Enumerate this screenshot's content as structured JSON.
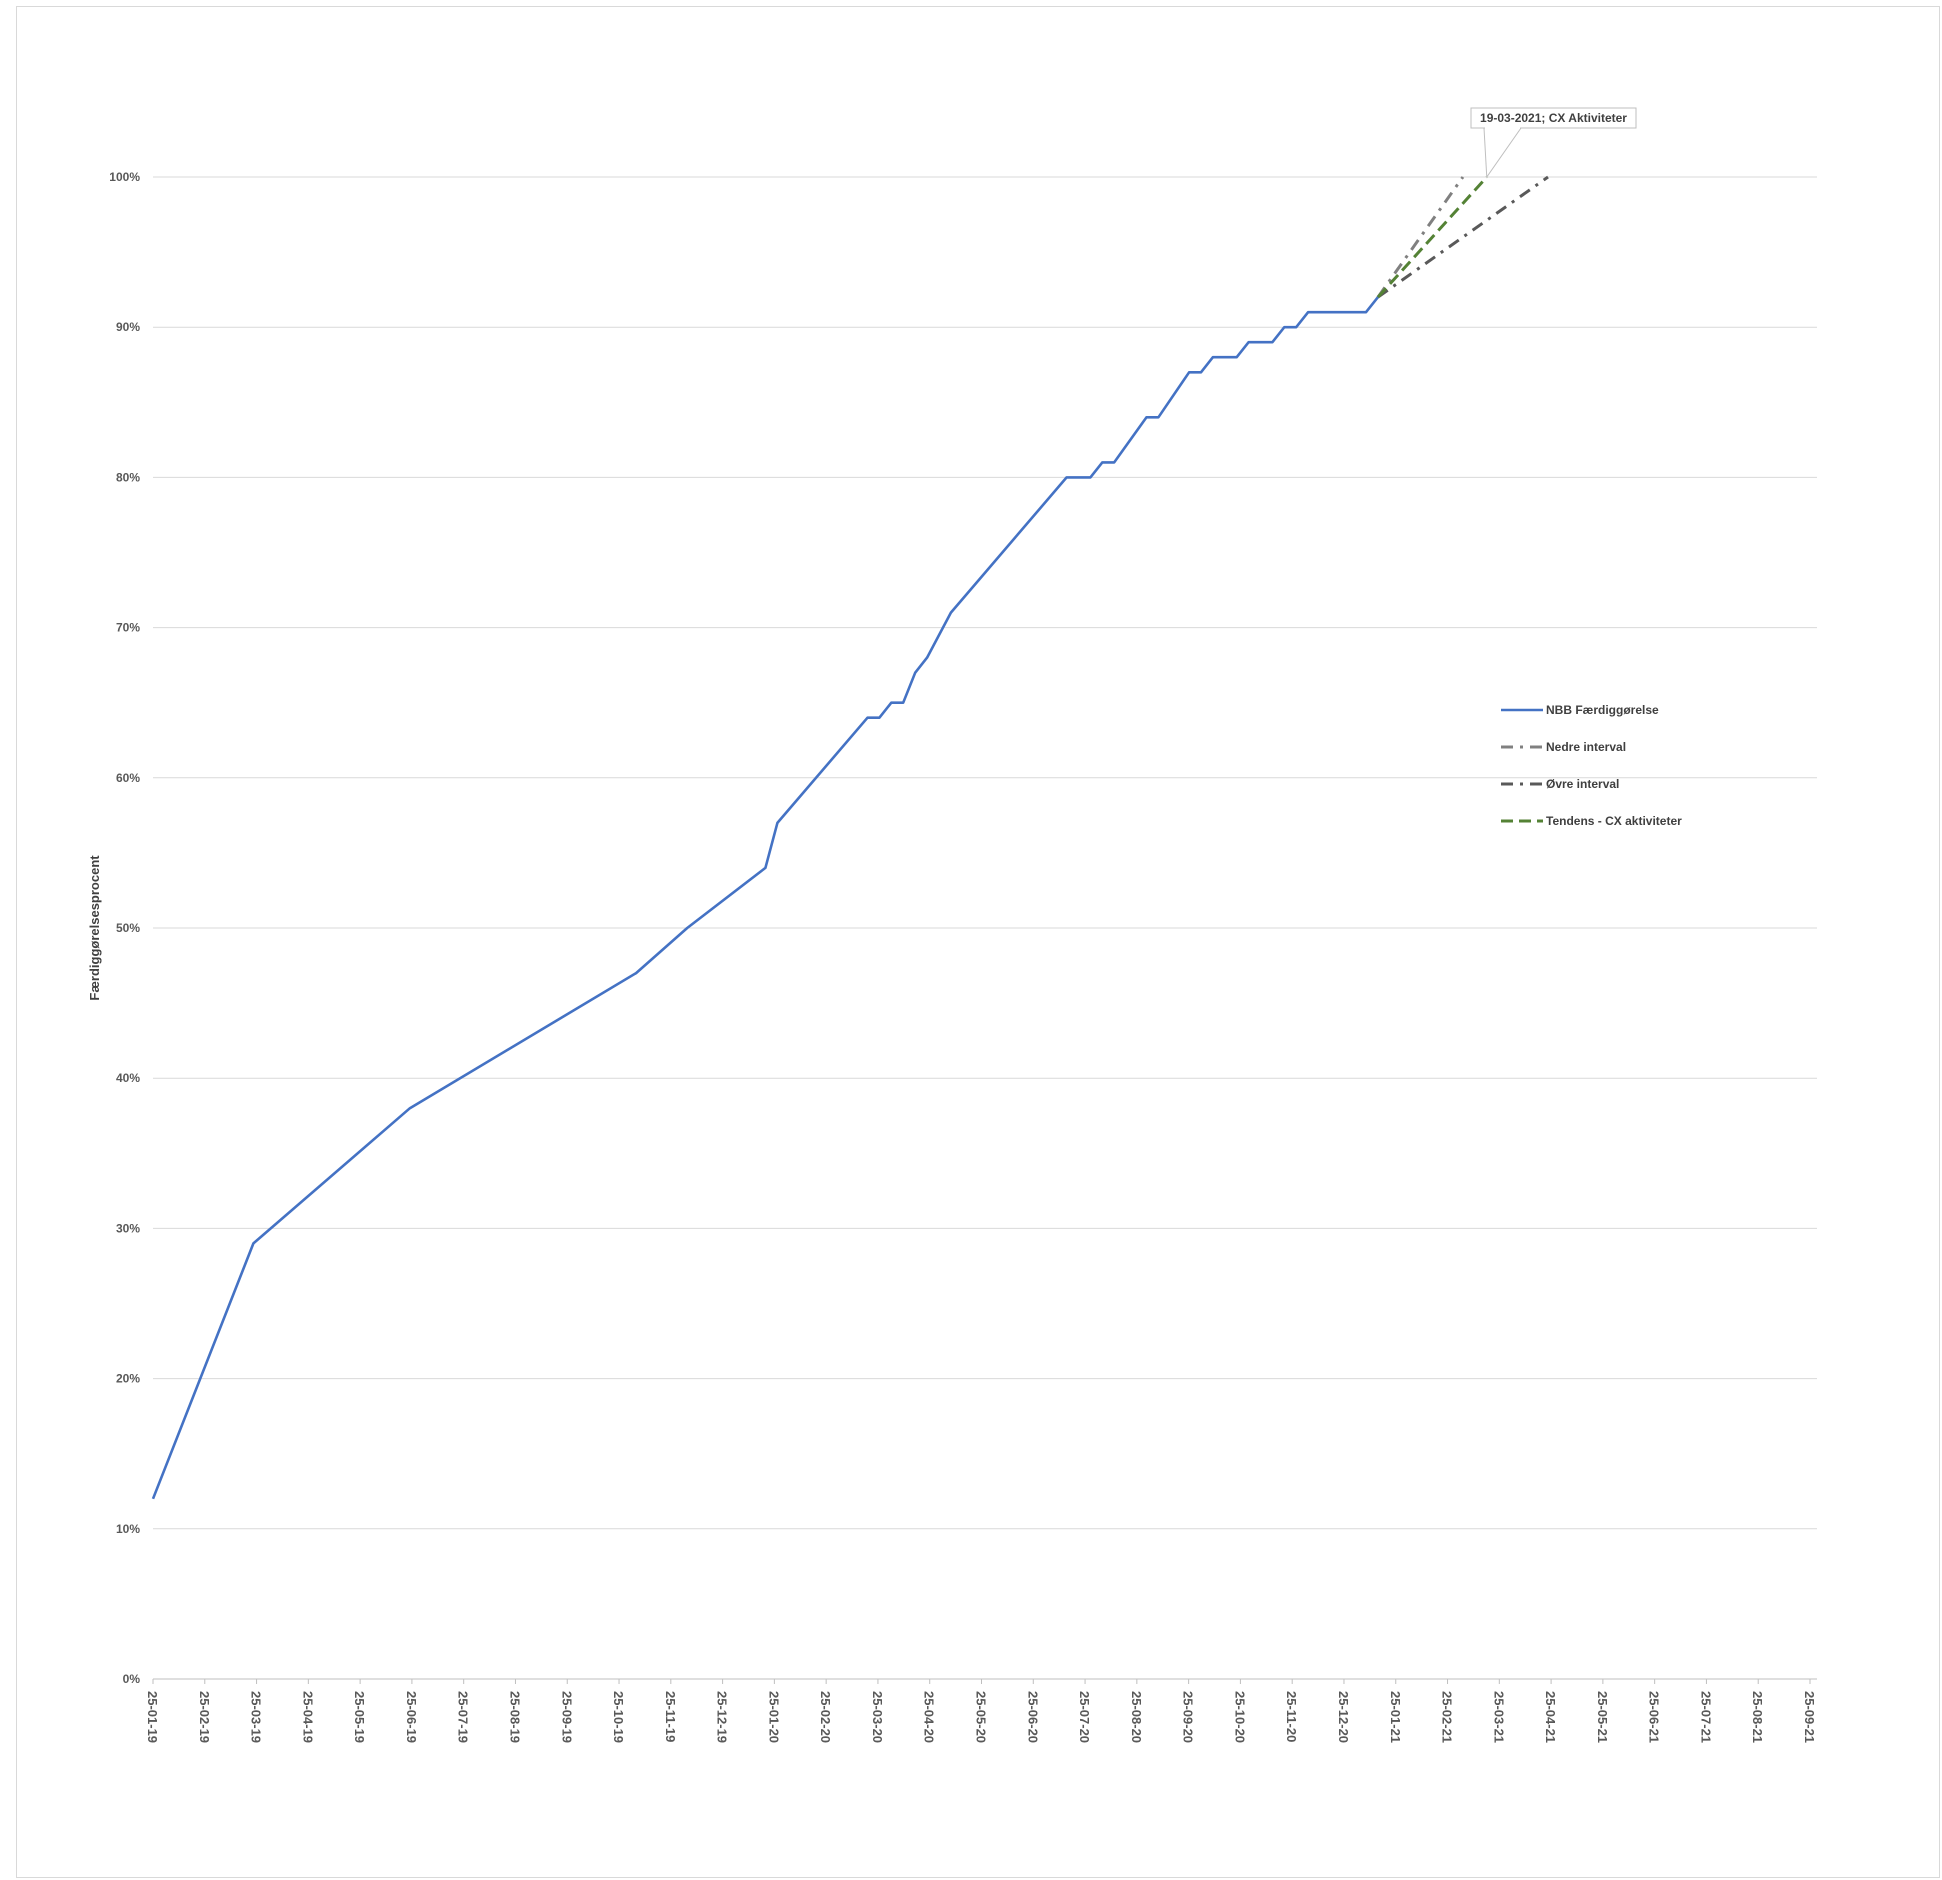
{
  "chart_data": {
    "type": "line",
    "ylabel": "Færdiggørelsesprocent",
    "xlabel": "",
    "title": "",
    "ylim": [
      0,
      100
    ],
    "y_ticks": [
      "0%",
      "10%",
      "20%",
      "30%",
      "40%",
      "50%",
      "60%",
      "70%",
      "80%",
      "90%",
      "100%"
    ],
    "x_ticks": [
      "25-01-19",
      "25-02-19",
      "25-03-19",
      "25-04-19",
      "25-05-19",
      "25-06-19",
      "25-07-19",
      "25-08-19",
      "25-09-19",
      "25-10-19",
      "25-11-19",
      "25-12-19",
      "25-01-20",
      "25-02-20",
      "25-03-20",
      "25-04-20",
      "25-05-20",
      "25-06-20",
      "25-07-20",
      "25-08-20",
      "25-09-20",
      "25-10-20",
      "25-11-20",
      "25-12-20",
      "25-01-21",
      "25-02-21",
      "25-03-21",
      "25-04-21",
      "25-05-21",
      "25-06-21",
      "25-07-21",
      "25-08-21",
      "25-09-21"
    ],
    "xlim": [
      "2019-01-25",
      "2021-09-25"
    ],
    "grid": "horizontal",
    "legend_position": "right",
    "series": [
      {
        "name": "NBB Færdiggørelse",
        "color": "#4472c4",
        "style": "solid",
        "points": [
          [
            "2019-01-25",
            12
          ],
          [
            "2019-03-25",
            29
          ],
          [
            "2019-06-25",
            38
          ],
          [
            "2019-11-05",
            47
          ],
          [
            "2019-12-05",
            50
          ],
          [
            "2020-01-20",
            54
          ],
          [
            "2020-01-27",
            57
          ],
          [
            "2020-03-20",
            64
          ],
          [
            "2020-03-27",
            64
          ],
          [
            "2020-04-03",
            65
          ],
          [
            "2020-04-10",
            65
          ],
          [
            "2020-04-17",
            67
          ],
          [
            "2020-04-24",
            68
          ],
          [
            "2020-05-08",
            71
          ],
          [
            "2020-07-15",
            80
          ],
          [
            "2020-07-29",
            80
          ],
          [
            "2020-08-05",
            81
          ],
          [
            "2020-08-12",
            81
          ],
          [
            "2020-08-31",
            84
          ],
          [
            "2020-09-07",
            84
          ],
          [
            "2020-09-25",
            87
          ],
          [
            "2020-10-02",
            87
          ],
          [
            "2020-10-09",
            88
          ],
          [
            "2020-10-23",
            88
          ],
          [
            "2020-10-30",
            89
          ],
          [
            "2020-11-13",
            89
          ],
          [
            "2020-11-20",
            90
          ],
          [
            "2020-11-27",
            90
          ],
          [
            "2020-12-04",
            91
          ],
          [
            "2021-01-07",
            91
          ],
          [
            "2021-01-14",
            92
          ]
        ]
      },
      {
        "name": "Nedre interval",
        "color": "#808080",
        "style": "dashdot",
        "points": [
          [
            "2021-01-14",
            92
          ],
          [
            "2021-03-05",
            100
          ]
        ]
      },
      {
        "name": "Øvre interval",
        "color": "#595959",
        "style": "dashdot",
        "points": [
          [
            "2021-01-14",
            92
          ],
          [
            "2021-04-24",
            100
          ]
        ]
      },
      {
        "name": "Tendens - CX aktiviteter",
        "color": "#548235",
        "style": "dashed",
        "points": [
          [
            "2021-01-14",
            92
          ],
          [
            "2021-03-19",
            100
          ]
        ]
      }
    ],
    "annotations": [
      {
        "text": "19-03-2021; CX Aktiviteter",
        "target": [
          "2021-03-19",
          100
        ]
      }
    ]
  }
}
